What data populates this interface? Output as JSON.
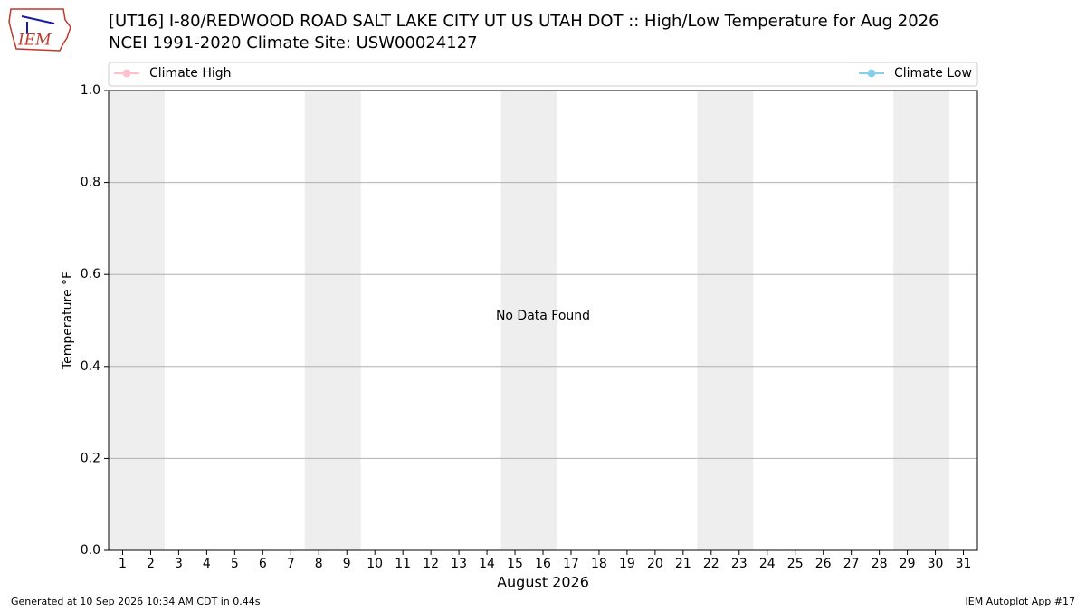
{
  "logo_text": "IEM",
  "chart_data": {
    "type": "line",
    "title": "[UT16] I-80/REDWOOD ROAD SALT LAKE CITY UT US UTAH DOT :: High/Low Temperature for Aug 2026",
    "subtitle": "NCEI 1991-2020 Climate Site: USW00024127",
    "x_label": "August 2026",
    "y_label": "Temperature °F",
    "annotation": "No Data Found",
    "x": [],
    "series": [
      {
        "name": "Climate High",
        "color": "#ffc0cb",
        "values": []
      },
      {
        "name": "Climate Low",
        "color": "#87ceeb",
        "values": []
      }
    ],
    "xlim": [
      0.5,
      31.5
    ],
    "xticks": [
      1,
      2,
      3,
      4,
      5,
      6,
      7,
      8,
      9,
      10,
      11,
      12,
      13,
      14,
      15,
      16,
      17,
      18,
      19,
      20,
      21,
      22,
      23,
      24,
      25,
      26,
      27,
      28,
      29,
      30,
      31
    ],
    "shaded_ranges": [
      [
        0.5,
        2.5
      ],
      [
        7.5,
        9.5
      ],
      [
        14.5,
        16.5
      ],
      [
        21.5,
        23.5
      ],
      [
        28.5,
        30.5
      ]
    ],
    "ylim": [
      0,
      1
    ],
    "yticks": [
      {
        "value": 0,
        "label": "0.0"
      },
      0.2,
      0.4,
      0.6,
      0.8,
      {
        "value": 1,
        "label": "1.0"
      }
    ],
    "grid": true,
    "footer_left": "Generated at 10 Sep 2026 10:34 AM CDT in 0.44s",
    "footer_right": "IEM Autoplot App #17"
  }
}
